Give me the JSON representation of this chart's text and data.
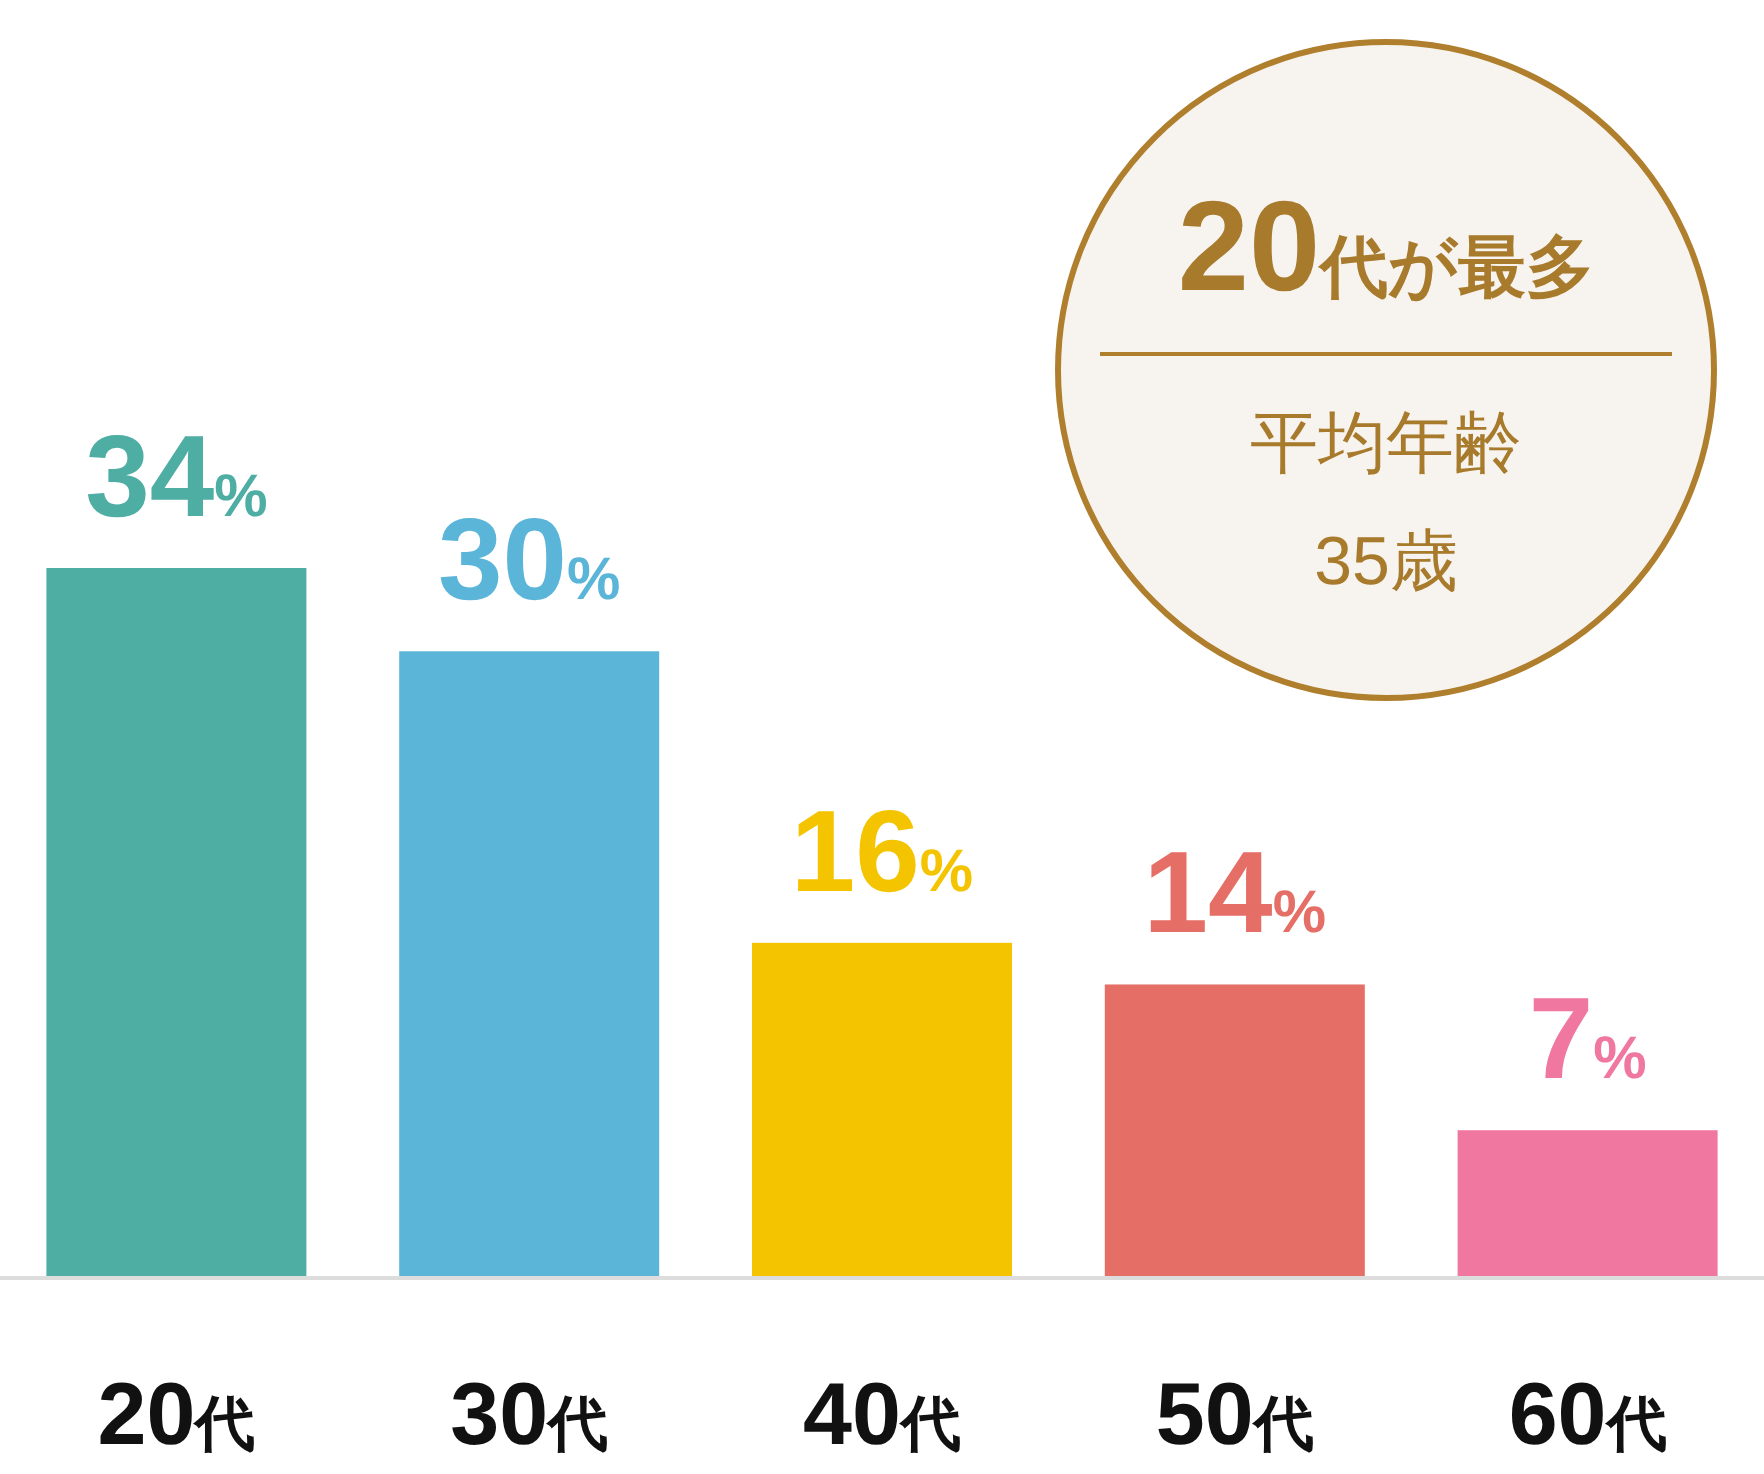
{
  "chart_data": {
    "type": "bar",
    "categories": [
      "20代",
      "30代",
      "40代",
      "50代",
      "60代"
    ],
    "values": [
      34,
      30,
      16,
      14,
      7
    ],
    "colors": [
      "#4eaea4",
      "#5ab5d8",
      "#f5c400",
      "#e56e66",
      "#ef77a0"
    ],
    "value_labels": [
      "34%",
      "30%",
      "16%",
      "14%",
      "7%"
    ],
    "annotations": [
      "20代が最多",
      "平均年齢",
      "35歳"
    ]
  }
}
